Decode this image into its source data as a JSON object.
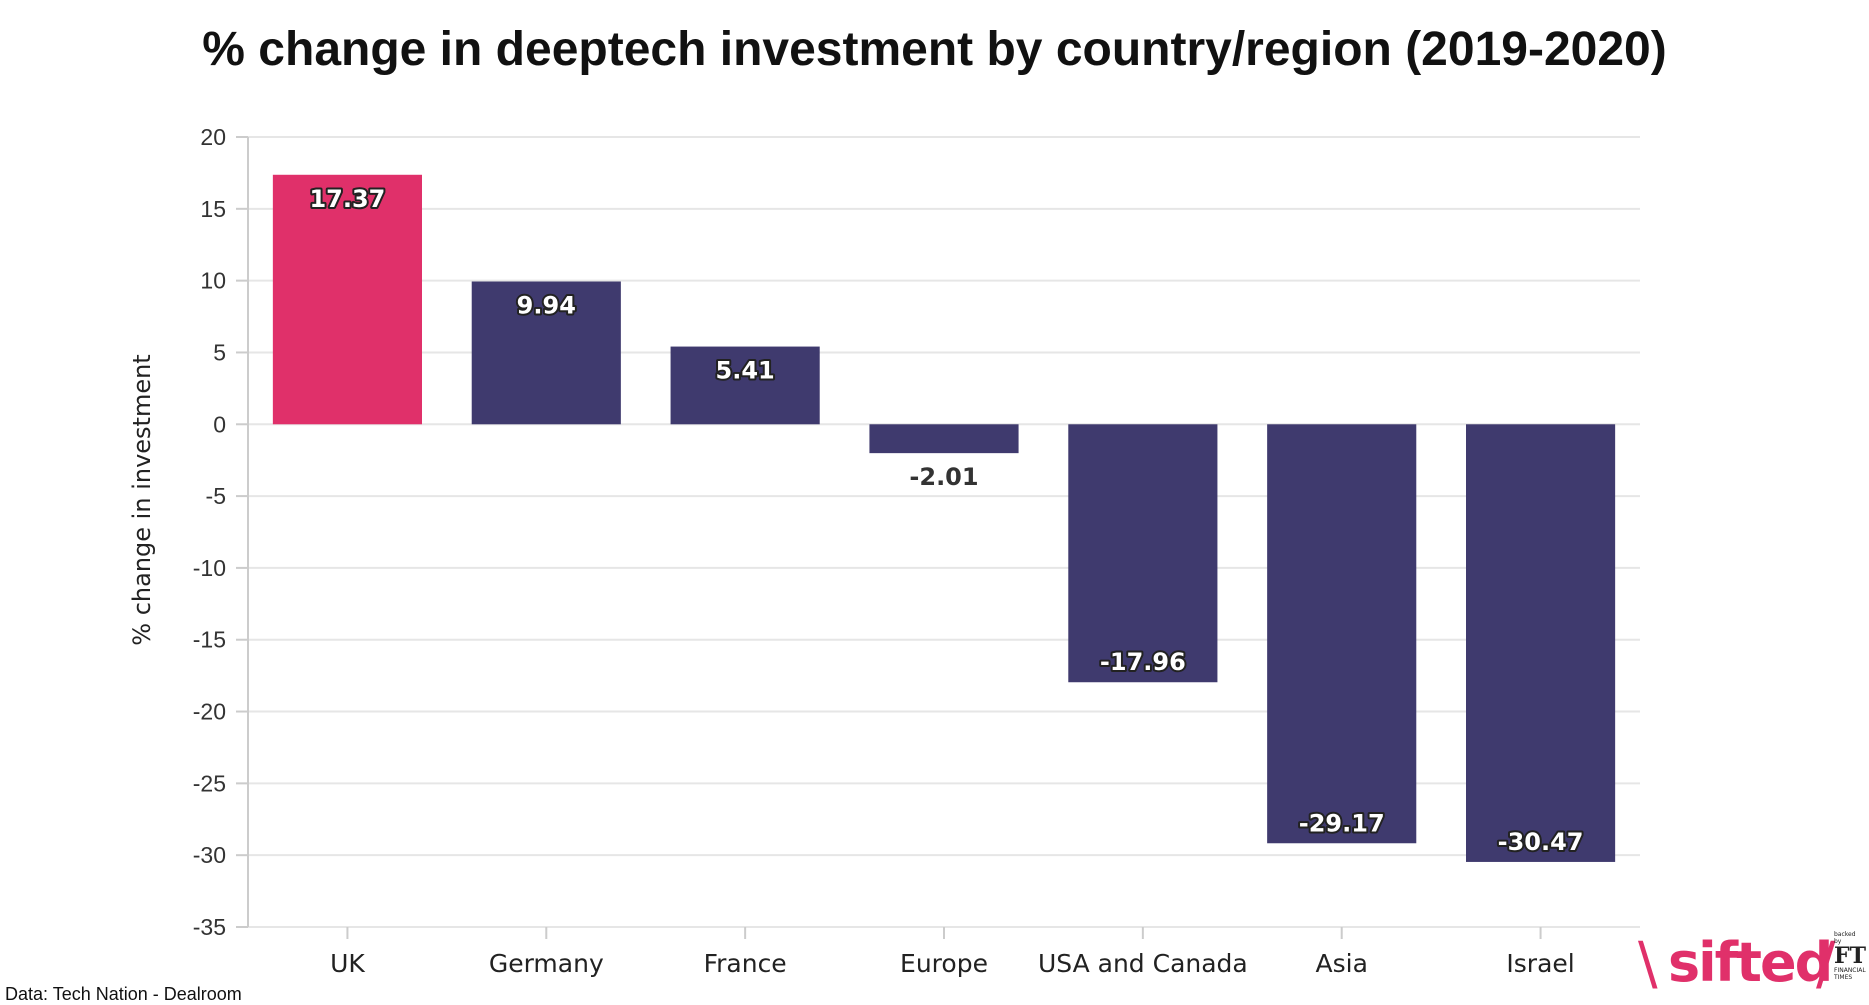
{
  "title": "% change in deeptech investment by country/region (2019-2020)",
  "source": "Data: Tech Nation - Dealroom",
  "logo": {
    "brand": "sifted",
    "backed_by": "backed by",
    "ft": "FT",
    "ft_sub": "FINANCIAL TIMES"
  },
  "colors": {
    "highlight": "#e0306a",
    "bar": "#3f3a6e",
    "grid": "#e6e6e6"
  },
  "chart_data": {
    "type": "bar",
    "title": "% change in deeptech investment by country/region (2019-2020)",
    "xlabel": "",
    "ylabel": "% change in investment",
    "ylim": [
      -35,
      20
    ],
    "yticks": [
      20,
      15,
      10,
      5,
      0,
      -5,
      -10,
      -15,
      -20,
      -25,
      -30,
      -35
    ],
    "categories": [
      "UK",
      "Germany",
      "France",
      "Europe",
      "USA and Canada",
      "Asia",
      "Israel"
    ],
    "values": [
      17.37,
      9.94,
      5.41,
      -2.01,
      -17.96,
      -29.17,
      -30.47
    ],
    "value_labels": [
      "17.37",
      "9.94",
      "5.41",
      "-2.01",
      "-17.96",
      "-29.17",
      "-30.47"
    ],
    "highlight": "UK",
    "grid": true
  }
}
